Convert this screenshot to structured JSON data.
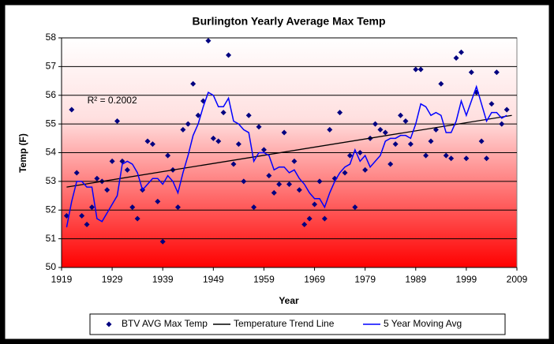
{
  "chart_data": {
    "type": "scatter",
    "title": "Burlington Yearly Average Max Temp",
    "x_label": "Year",
    "y_label": "Temp (F)",
    "annotation": "R² = 0.2002",
    "annotation_pos": [
      1929,
      55.8
    ],
    "xlim": [
      1919,
      2009
    ],
    "xticks": [
      1919,
      1929,
      1939,
      1949,
      1959,
      1969,
      1979,
      1989,
      1999,
      2009
    ],
    "ylim": [
      50,
      58
    ],
    "yticks": [
      50,
      51,
      52,
      53,
      54,
      55,
      56,
      57,
      58
    ],
    "grid": true,
    "legend": "bottom",
    "x": [
      1920,
      1921,
      1922,
      1923,
      1924,
      1925,
      1926,
      1927,
      1928,
      1929,
      1930,
      1931,
      1932,
      1933,
      1934,
      1935,
      1936,
      1937,
      1938,
      1939,
      1940,
      1941,
      1942,
      1943,
      1944,
      1945,
      1946,
      1947,
      1948,
      1949,
      1950,
      1951,
      1952,
      1953,
      1954,
      1955,
      1956,
      1957,
      1958,
      1959,
      1960,
      1961,
      1962,
      1963,
      1964,
      1965,
      1966,
      1967,
      1968,
      1969,
      1970,
      1971,
      1972,
      1973,
      1974,
      1975,
      1976,
      1977,
      1978,
      1979,
      1980,
      1981,
      1982,
      1983,
      1984,
      1985,
      1986,
      1987,
      1988,
      1989,
      1990,
      1991,
      1992,
      1993,
      1994,
      1995,
      1996,
      1997,
      1998,
      1999,
      2000,
      2001,
      2002,
      2003,
      2004,
      2005,
      2006,
      2007
    ],
    "series": [
      {
        "name": "BTV AVG Max Temp",
        "color": "#000080",
        "style": "markers",
        "values": [
          51.8,
          55.5,
          53.3,
          51.8,
          51.5,
          52.1,
          53.1,
          53.0,
          52.7,
          53.7,
          55.1,
          53.7,
          53.4,
          52.1,
          51.7,
          52.7,
          54.4,
          54.3,
          52.3,
          50.9,
          53.9,
          53.4,
          52.1,
          54.8,
          55.0,
          56.4,
          55.3,
          55.8,
          57.9,
          54.5,
          54.4,
          55.4,
          57.4,
          53.6,
          54.3,
          53.0,
          55.3,
          52.1,
          54.9,
          54.1,
          53.2,
          52.6,
          52.9,
          54.7,
          52.9,
          53.7,
          52.7,
          51.5,
          51.7,
          52.2,
          53.0,
          51.7,
          54.8,
          53.1,
          55.4,
          53.3,
          53.9,
          52.1,
          54.0,
          53.4,
          54.5,
          55.0,
          54.8,
          54.7,
          53.6,
          54.3,
          55.3,
          55.1,
          54.3,
          56.9,
          56.9,
          53.9,
          54.4,
          54.8,
          56.4,
          53.9,
          53.8,
          57.3,
          57.5,
          53.8,
          56.8,
          56.1,
          54.4,
          53.8,
          55.7,
          56.8,
          55.0,
          55.5
        ]
      },
      {
        "name": "Temperature Trend Line",
        "color": "#000000",
        "style": "line",
        "x": [
          1920,
          2008
        ],
        "values": [
          52.8,
          55.3
        ]
      },
      {
        "name": "5 Year Moving Avg",
        "color": "#0000ff",
        "style": "line",
        "values": [
          51.4,
          52.3,
          53.0,
          53.0,
          52.8,
          52.8,
          51.7,
          51.6,
          51.9,
          52.2,
          52.5,
          53.6,
          53.7,
          53.6,
          53.3,
          52.7,
          52.9,
          53.1,
          53.1,
          52.9,
          53.2,
          53.0,
          52.6,
          53.3,
          53.9,
          54.6,
          55.0,
          55.6,
          56.1,
          56.0,
          55.6,
          55.6,
          55.9,
          55.1,
          55.0,
          54.8,
          54.7,
          53.7,
          54.0,
          54.0,
          53.9,
          53.4,
          53.5,
          53.5,
          53.3,
          53.4,
          53.1,
          52.9,
          52.6,
          52.4,
          52.4,
          52.1,
          52.6,
          53.0,
          53.3,
          53.5,
          53.6,
          54.1,
          53.7,
          53.9,
          53.5,
          53.7,
          53.9,
          54.4,
          54.5,
          54.5,
          54.6,
          54.6,
          54.5,
          55.0,
          55.7,
          55.6,
          55.3,
          55.4,
          55.3,
          54.7,
          54.7,
          55.1,
          55.8,
          55.3,
          55.8,
          56.3,
          55.7,
          55.1,
          55.4,
          55.4,
          55.2,
          55.3
        ]
      }
    ]
  }
}
